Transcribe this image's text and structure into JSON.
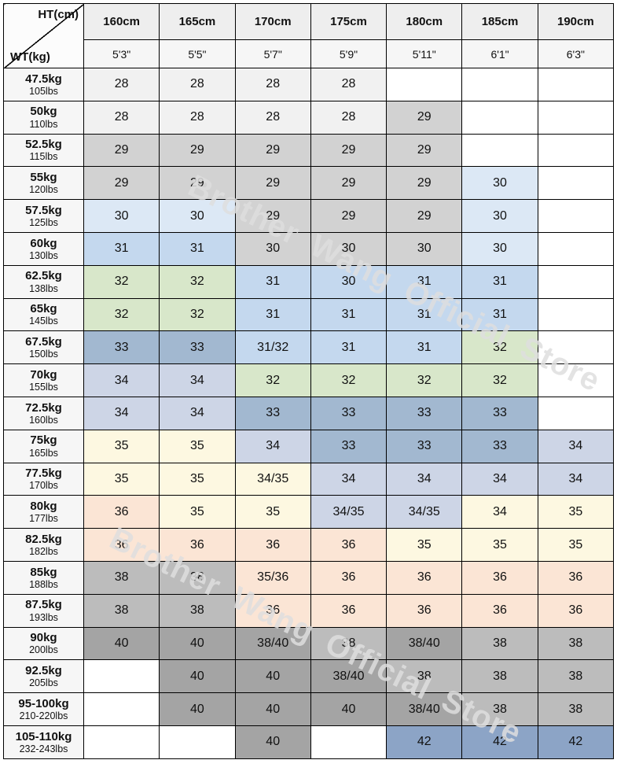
{
  "watermark": {
    "text": "Brother Wang Official Store"
  },
  "corner": {
    "top": "HT(cm)",
    "bottom": "WT(kg)"
  },
  "palette": {
    "white": "#ffffff",
    "g1": "#f1f1f1",
    "g2": "#d2d2d2",
    "b1": "#dce8f5",
    "b2": "#c4d8ee",
    "gr": "#d8e7ca",
    "b3": "#a2b8d0",
    "lv": "#cdd5e6",
    "cr": "#fdf8e1",
    "pc": "#fbe5d5",
    "g3": "#bcbcbc",
    "g4": "#a4a4a4",
    "sb": "#8ca4c6",
    "header1": "#eeeeee",
    "header2": "#f6f6f6",
    "rowheader": "#f6f6f6",
    "corner": "#fcfcfc",
    "border": "#000000"
  },
  "chart_data": {
    "type": "table",
    "title": "Pants size chart by height (cm/ft) and weight (kg/lbs)",
    "columns": [
      {
        "cm": "160cm",
        "ft": "5'3\""
      },
      {
        "cm": "165cm",
        "ft": "5'5\""
      },
      {
        "cm": "170cm",
        "ft": "5'7\""
      },
      {
        "cm": "175cm",
        "ft": "5'9\""
      },
      {
        "cm": "180cm",
        "ft": "5'11\""
      },
      {
        "cm": "185cm",
        "ft": "6'1\""
      },
      {
        "cm": "190cm",
        "ft": "6'3\""
      }
    ],
    "rows": [
      {
        "kg": "47.5kg",
        "lbs": "105lbs",
        "cells": [
          {
            "v": "28",
            "c": "g1"
          },
          {
            "v": "28",
            "c": "g1"
          },
          {
            "v": "28",
            "c": "g1"
          },
          {
            "v": "28",
            "c": "g1"
          },
          {
            "v": "",
            "c": "white"
          },
          {
            "v": "",
            "c": "white"
          },
          {
            "v": "",
            "c": "white"
          }
        ]
      },
      {
        "kg": "50kg",
        "lbs": "110lbs",
        "cells": [
          {
            "v": "28",
            "c": "g1"
          },
          {
            "v": "28",
            "c": "g1"
          },
          {
            "v": "28",
            "c": "g1"
          },
          {
            "v": "28",
            "c": "g1"
          },
          {
            "v": "29",
            "c": "g2"
          },
          {
            "v": "",
            "c": "white"
          },
          {
            "v": "",
            "c": "white"
          }
        ]
      },
      {
        "kg": "52.5kg",
        "lbs": "115lbs",
        "cells": [
          {
            "v": "29",
            "c": "g2"
          },
          {
            "v": "29",
            "c": "g2"
          },
          {
            "v": "29",
            "c": "g2"
          },
          {
            "v": "29",
            "c": "g2"
          },
          {
            "v": "29",
            "c": "g2"
          },
          {
            "v": "",
            "c": "white"
          },
          {
            "v": "",
            "c": "white"
          }
        ]
      },
      {
        "kg": "55kg",
        "lbs": "120lbs",
        "cells": [
          {
            "v": "29",
            "c": "g2"
          },
          {
            "v": "29",
            "c": "g2"
          },
          {
            "v": "29",
            "c": "g2"
          },
          {
            "v": "29",
            "c": "g2"
          },
          {
            "v": "29",
            "c": "g2"
          },
          {
            "v": "30",
            "c": "b1"
          },
          {
            "v": "",
            "c": "white"
          }
        ]
      },
      {
        "kg": "57.5kg",
        "lbs": "125lbs",
        "cells": [
          {
            "v": "30",
            "c": "b1"
          },
          {
            "v": "30",
            "c": "b1"
          },
          {
            "v": "29",
            "c": "g2"
          },
          {
            "v": "29",
            "c": "g2"
          },
          {
            "v": "29",
            "c": "g2"
          },
          {
            "v": "30",
            "c": "b1"
          },
          {
            "v": "",
            "c": "white"
          }
        ]
      },
      {
        "kg": "60kg",
        "lbs": "130lbs",
        "cells": [
          {
            "v": "31",
            "c": "b2"
          },
          {
            "v": "31",
            "c": "b2"
          },
          {
            "v": "30",
            "c": "g2"
          },
          {
            "v": "30",
            "c": "g2"
          },
          {
            "v": "30",
            "c": "g2"
          },
          {
            "v": "30",
            "c": "b1"
          },
          {
            "v": "",
            "c": "white"
          }
        ]
      },
      {
        "kg": "62.5kg",
        "lbs": "138lbs",
        "cells": [
          {
            "v": "32",
            "c": "gr"
          },
          {
            "v": "32",
            "c": "gr"
          },
          {
            "v": "31",
            "c": "b2"
          },
          {
            "v": "30",
            "c": "b2"
          },
          {
            "v": "31",
            "c": "b2"
          },
          {
            "v": "31",
            "c": "b2"
          },
          {
            "v": "",
            "c": "white"
          }
        ]
      },
      {
        "kg": "65kg",
        "lbs": "145lbs",
        "cells": [
          {
            "v": "32",
            "c": "gr"
          },
          {
            "v": "32",
            "c": "gr"
          },
          {
            "v": "31",
            "c": "b2"
          },
          {
            "v": "31",
            "c": "b2"
          },
          {
            "v": "31",
            "c": "b2"
          },
          {
            "v": "31",
            "c": "b2"
          },
          {
            "v": "",
            "c": "white"
          }
        ]
      },
      {
        "kg": "67.5kg",
        "lbs": "150lbs",
        "cells": [
          {
            "v": "33",
            "c": "b3"
          },
          {
            "v": "33",
            "c": "b3"
          },
          {
            "v": "31/32",
            "c": "b2"
          },
          {
            "v": "31",
            "c": "b2"
          },
          {
            "v": "31",
            "c": "b2"
          },
          {
            "v": "32",
            "c": "gr"
          },
          {
            "v": "",
            "c": "white"
          }
        ]
      },
      {
        "kg": "70kg",
        "lbs": "155lbs",
        "cells": [
          {
            "v": "34",
            "c": "lv"
          },
          {
            "v": "34",
            "c": "lv"
          },
          {
            "v": "32",
            "c": "gr"
          },
          {
            "v": "32",
            "c": "gr"
          },
          {
            "v": "32",
            "c": "gr"
          },
          {
            "v": "32",
            "c": "gr"
          },
          {
            "v": "",
            "c": "white"
          }
        ]
      },
      {
        "kg": "72.5kg",
        "lbs": "160lbs",
        "cells": [
          {
            "v": "34",
            "c": "lv"
          },
          {
            "v": "34",
            "c": "lv"
          },
          {
            "v": "33",
            "c": "b3"
          },
          {
            "v": "33",
            "c": "b3"
          },
          {
            "v": "33",
            "c": "b3"
          },
          {
            "v": "33",
            "c": "b3"
          },
          {
            "v": "",
            "c": "white"
          }
        ]
      },
      {
        "kg": "75kg",
        "lbs": "165lbs",
        "cells": [
          {
            "v": "35",
            "c": "cr"
          },
          {
            "v": "35",
            "c": "cr"
          },
          {
            "v": "34",
            "c": "lv"
          },
          {
            "v": "33",
            "c": "b3"
          },
          {
            "v": "33",
            "c": "b3"
          },
          {
            "v": "33",
            "c": "b3"
          },
          {
            "v": "34",
            "c": "lv"
          }
        ]
      },
      {
        "kg": "77.5kg",
        "lbs": "170lbs",
        "cells": [
          {
            "v": "35",
            "c": "cr"
          },
          {
            "v": "35",
            "c": "cr"
          },
          {
            "v": "34/35",
            "c": "cr"
          },
          {
            "v": "34",
            "c": "lv"
          },
          {
            "v": "34",
            "c": "lv"
          },
          {
            "v": "34",
            "c": "lv"
          },
          {
            "v": "34",
            "c": "lv"
          }
        ]
      },
      {
        "kg": "80kg",
        "lbs": "177lbs",
        "cells": [
          {
            "v": "36",
            "c": "pc"
          },
          {
            "v": "35",
            "c": "cr"
          },
          {
            "v": "35",
            "c": "cr"
          },
          {
            "v": "34/35",
            "c": "lv"
          },
          {
            "v": "34/35",
            "c": "lv"
          },
          {
            "v": "34",
            "c": "cr"
          },
          {
            "v": "35",
            "c": "cr"
          }
        ]
      },
      {
        "kg": "82.5kg",
        "lbs": "182lbs",
        "cells": [
          {
            "v": "36",
            "c": "pc"
          },
          {
            "v": "36",
            "c": "pc"
          },
          {
            "v": "36",
            "c": "pc"
          },
          {
            "v": "36",
            "c": "pc"
          },
          {
            "v": "35",
            "c": "cr"
          },
          {
            "v": "35",
            "c": "cr"
          },
          {
            "v": "35",
            "c": "cr"
          }
        ]
      },
      {
        "kg": "85kg",
        "lbs": "188lbs",
        "cells": [
          {
            "v": "38",
            "c": "g3"
          },
          {
            "v": "38",
            "c": "g3"
          },
          {
            "v": "35/36",
            "c": "pc"
          },
          {
            "v": "36",
            "c": "pc"
          },
          {
            "v": "36",
            "c": "pc"
          },
          {
            "v": "36",
            "c": "pc"
          },
          {
            "v": "36",
            "c": "pc"
          }
        ]
      },
      {
        "kg": "87.5kg",
        "lbs": "193lbs",
        "cells": [
          {
            "v": "38",
            "c": "g3"
          },
          {
            "v": "38",
            "c": "g3"
          },
          {
            "v": "36",
            "c": "pc"
          },
          {
            "v": "36",
            "c": "pc"
          },
          {
            "v": "36",
            "c": "pc"
          },
          {
            "v": "36",
            "c": "pc"
          },
          {
            "v": "36",
            "c": "pc"
          }
        ]
      },
      {
        "kg": "90kg",
        "lbs": "200lbs",
        "cells": [
          {
            "v": "40",
            "c": "g4"
          },
          {
            "v": "40",
            "c": "g4"
          },
          {
            "v": "38/40",
            "c": "g4"
          },
          {
            "v": "38",
            "c": "g3"
          },
          {
            "v": "38/40",
            "c": "g4"
          },
          {
            "v": "38",
            "c": "g3"
          },
          {
            "v": "38",
            "c": "g3"
          }
        ]
      },
      {
        "kg": "92.5kg",
        "lbs": "205lbs",
        "cells": [
          {
            "v": "",
            "c": "white"
          },
          {
            "v": "40",
            "c": "g4"
          },
          {
            "v": "40",
            "c": "g4"
          },
          {
            "v": "38/40",
            "c": "g4"
          },
          {
            "v": "38",
            "c": "g3"
          },
          {
            "v": "38",
            "c": "g3"
          },
          {
            "v": "38",
            "c": "g3"
          }
        ]
      },
      {
        "kg": "95-100kg",
        "lbs": "210-220lbs",
        "cells": [
          {
            "v": "",
            "c": "white"
          },
          {
            "v": "40",
            "c": "g4"
          },
          {
            "v": "40",
            "c": "g4"
          },
          {
            "v": "40",
            "c": "g4"
          },
          {
            "v": "38/40",
            "c": "g4"
          },
          {
            "v": "38",
            "c": "g3"
          },
          {
            "v": "38",
            "c": "g3"
          }
        ]
      },
      {
        "kg": "105-110kg",
        "lbs": "232-243lbs",
        "cells": [
          {
            "v": "",
            "c": "white"
          },
          {
            "v": "",
            "c": "white"
          },
          {
            "v": "40",
            "c": "g4"
          },
          {
            "v": "",
            "c": "white"
          },
          {
            "v": "42",
            "c": "sb"
          },
          {
            "v": "42",
            "c": "sb"
          },
          {
            "v": "42",
            "c": "sb"
          }
        ]
      }
    ]
  }
}
